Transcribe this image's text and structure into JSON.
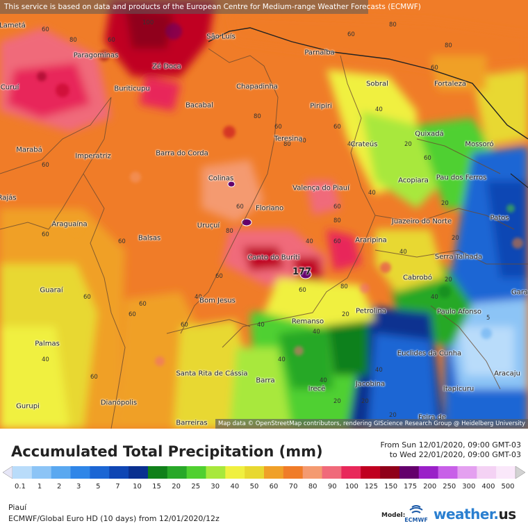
{
  "banner": "This service is based on data and products of the European Centre for Medium-range Weather Forecasts (ECMWF)",
  "attribution": "Map data © OpenStreetMap contributors, rendering GIScience Research Group @ Heidelberg University",
  "title": "Accumulated Total Precipitation (mm)",
  "date_from": "From Sun 12/01/2020, 09:00 GMT-03",
  "date_to": "to Wed 22/01/2020, 09:00 GMT-03",
  "region": "Piauí",
  "model_info": "ECMWF/Global Euro HD (10 days)  from  12/01/2020/12z",
  "model_label": "Model:",
  "ecmwf_text": "ECMWF",
  "brand": {
    "name": "weather.",
    "suffix": "us"
  },
  "max_value": "177",
  "legend": {
    "ticks": [
      "0.1",
      "1",
      "2",
      "3",
      "5",
      "7",
      "10",
      "15",
      "20",
      "25",
      "30",
      "40",
      "50",
      "60",
      "70",
      "80",
      "90",
      "100",
      "125",
      "150",
      "175",
      "200",
      "250",
      "300",
      "400",
      "500"
    ],
    "colors": [
      "#e6e6f7",
      "#b9dcfa",
      "#8cc4f6",
      "#5aa8f0",
      "#2f86e8",
      "#1c66d4",
      "#0f46b4",
      "#0a3090",
      "#10801a",
      "#28a828",
      "#50d030",
      "#a8e83c",
      "#f0f040",
      "#e8d830",
      "#f0a028",
      "#f07c28",
      "#f49a70",
      "#f06a7a",
      "#e8285a",
      "#c00020",
      "#90001a",
      "#64006c",
      "#9a20c8",
      "#c860e8",
      "#e4a0f0",
      "#f4d2f4",
      "#fae8fa",
      "#d2d2d2"
    ]
  },
  "cities": [
    {
      "name": "São Luís"
    },
    {
      "name": "Parnaíba"
    },
    {
      "name": "Paragominas"
    },
    {
      "name": "Zé Doca"
    },
    {
      "name": "Chapadinha"
    },
    {
      "name": "Sobral"
    },
    {
      "name": "Fortaleza"
    },
    {
      "name": "Buriticupu"
    },
    {
      "name": "Bacabal"
    },
    {
      "name": "Piripiri"
    },
    {
      "name": "Crateús"
    },
    {
      "name": "Quixadá"
    },
    {
      "name": "Mossoró"
    },
    {
      "name": "Marabá"
    },
    {
      "name": "Imperatriz"
    },
    {
      "name": "Barra do Corda"
    },
    {
      "name": "Teresina"
    },
    {
      "name": "Colinas"
    },
    {
      "name": "Valença do Piauí"
    },
    {
      "name": "Acopiara"
    },
    {
      "name": "Pau dos Ferros"
    },
    {
      "name": "Floriano"
    },
    {
      "name": "Araguaína"
    },
    {
      "name": "Uruçuí"
    },
    {
      "name": "Juazeiro do Norte"
    },
    {
      "name": "Patos"
    },
    {
      "name": "Balsas"
    },
    {
      "name": "Araripina"
    },
    {
      "name": "Canto do Buriti"
    },
    {
      "name": "Serra Talhada"
    },
    {
      "name": "Cabrobó"
    },
    {
      "name": "Guaraí"
    },
    {
      "name": "Bom Jesus"
    },
    {
      "name": "Petrolina"
    },
    {
      "name": "Paulo Afonso"
    },
    {
      "name": "Remanso"
    },
    {
      "name": "Palmas"
    },
    {
      "name": "Euclides da Cunha"
    },
    {
      "name": "Santa Rita de Cássia"
    },
    {
      "name": "Barra"
    },
    {
      "name": "Irecê"
    },
    {
      "name": "Jacobina"
    },
    {
      "name": "Aracaju"
    },
    {
      "name": "Itapicuru"
    },
    {
      "name": "Gurupi"
    },
    {
      "name": "Dianópolis"
    },
    {
      "name": "Barreiras"
    },
    {
      "name": "Feira de"
    },
    {
      "name": "Lametá"
    },
    {
      "name": "Curuí"
    },
    {
      "name": "Rajás"
    },
    {
      "name": "Gara"
    }
  ],
  "contour_labels": [
    "60",
    "80",
    "60",
    "100",
    "60",
    "80",
    "80",
    "60",
    "40",
    "60",
    "40",
    "20",
    "60",
    "80",
    "60",
    "80",
    "40",
    "60",
    "20",
    "40",
    "60",
    "80",
    "40",
    "20",
    "40",
    "80",
    "60",
    "60",
    "60",
    "40",
    "60",
    "60",
    "20",
    "40",
    "20",
    "20",
    "40",
    "60",
    "40",
    "5",
    "40",
    "20",
    "40",
    "60",
    "60",
    "20",
    "40",
    "60",
    "80",
    "60",
    "40",
    "60"
  ]
}
